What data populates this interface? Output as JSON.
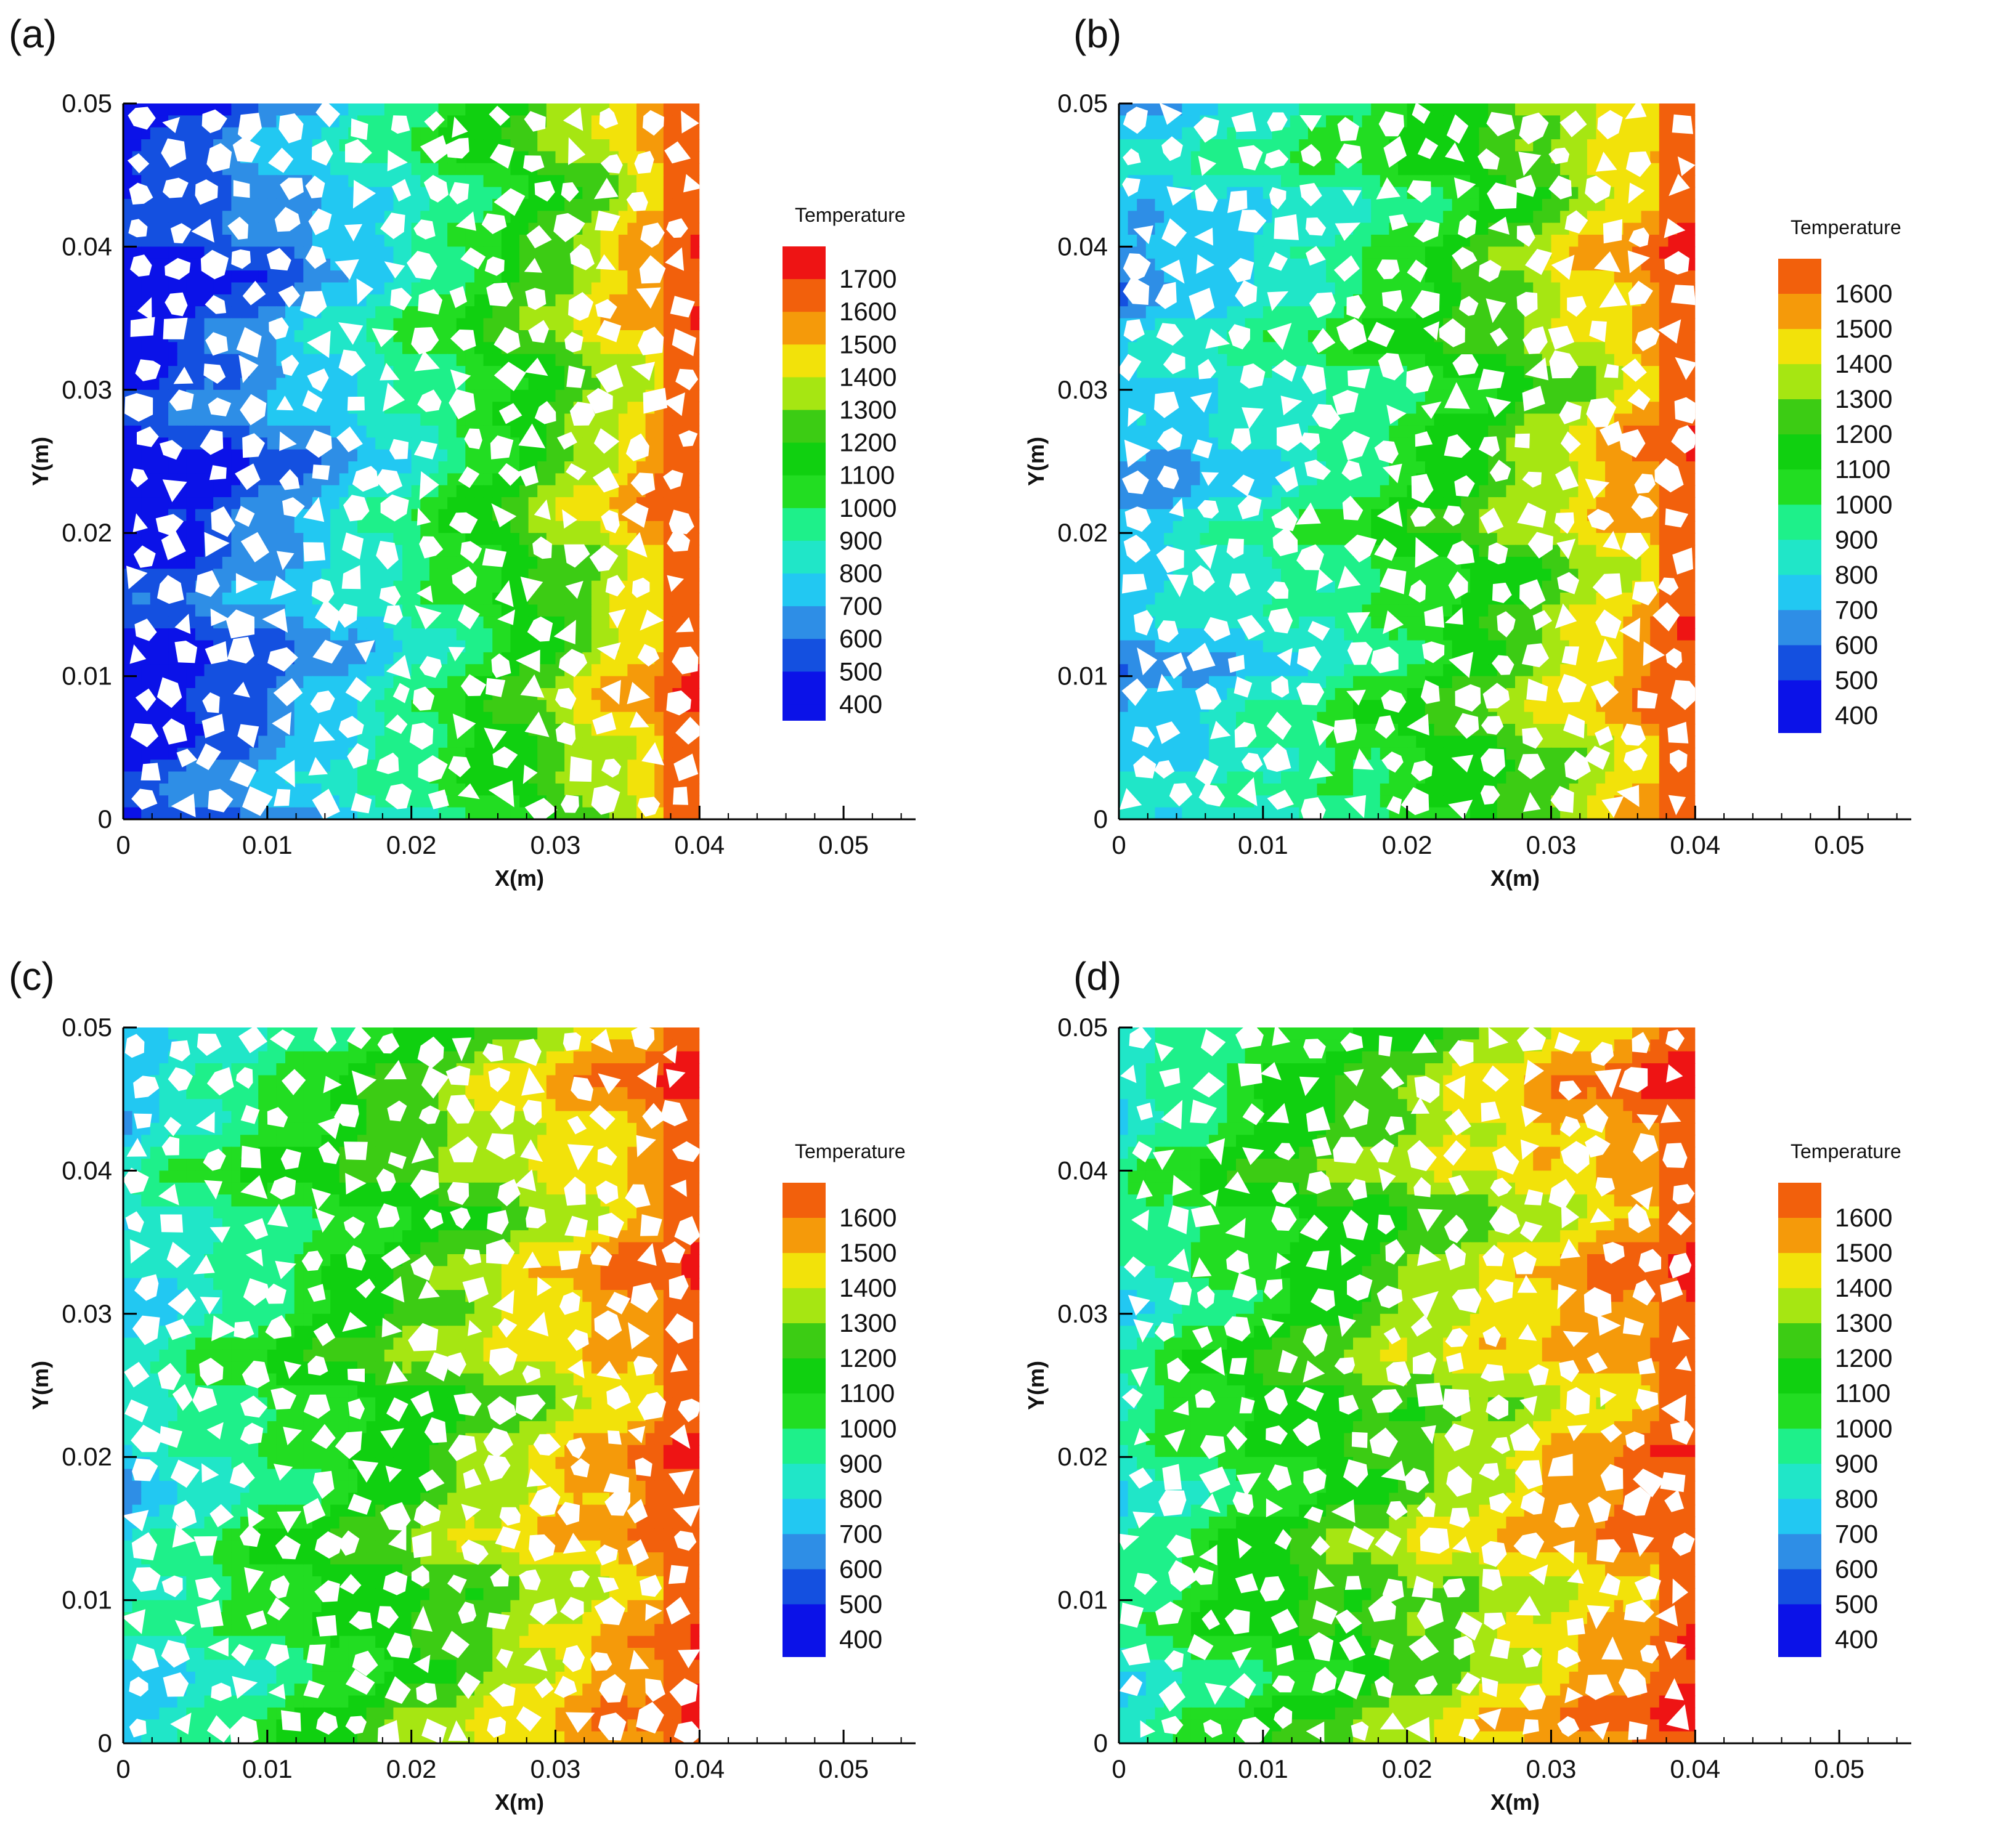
{
  "figure": {
    "panels": [
      {
        "label": "(a)",
        "legend_title": "Temperature",
        "field": {
          "left": 450,
          "right": 1650,
          "drop": 0.0,
          "curve": 1.35
        }
      },
      {
        "label": "(b)",
        "legend_title": "Temperature",
        "field": {
          "left": 720,
          "right": 1650,
          "drop": 150,
          "curve": 1.1
        }
      },
      {
        "label": "(c)",
        "legend_title": "Temperature",
        "field": {
          "left": 780,
          "right": 1650,
          "drop": 80,
          "curve": 0.85
        }
      },
      {
        "label": "(d)",
        "legend_title": "Temperature",
        "field": {
          "left": 850,
          "right": 1650,
          "drop": 60,
          "curve": 0.75
        }
      }
    ]
  },
  "colors": {
    "palette": [
      "#0b12e8",
      "#1450e0",
      "#2e8ee6",
      "#22c8f2",
      "#20e6c8",
      "#1ef08a",
      "#22dd22",
      "#10d010",
      "#3ccc14",
      "#a6e612",
      "#f2e20a",
      "#f59a0a",
      "#f2600c",
      "#ee1414"
    ]
  },
  "chart_data": [
    {
      "type": "heatmap",
      "title": "Temperature",
      "xlabel": "X(m)",
      "ylabel": "Y(m)",
      "xlim": [
        0,
        0.055
      ],
      "ylim": [
        0,
        0.05
      ],
      "domain_x": [
        0,
        0.04
      ],
      "xticks": [
        "0",
        "0.01",
        "0.02",
        "0.03",
        "0.04",
        "0.05"
      ],
      "yticks": [
        "0",
        "0.01",
        "0.02",
        "0.03",
        "0.04",
        "0.05"
      ],
      "legend_levels": [
        1700,
        1600,
        1500,
        1400,
        1300,
        1200,
        1100,
        1000,
        900,
        800,
        700,
        600,
        500,
        400
      ],
      "legend_range": [
        400,
        1750
      ]
    },
    {
      "type": "heatmap",
      "title": "Temperature",
      "xlabel": "X(m)",
      "ylabel": "Y(m)",
      "xlim": [
        0,
        0.055
      ],
      "ylim": [
        0,
        0.05
      ],
      "domain_x": [
        0,
        0.04
      ],
      "xticks": [
        "0",
        "0.01",
        "0.02",
        "0.03",
        "0.04",
        "0.05"
      ],
      "yticks": [
        "0",
        "0.01",
        "0.02",
        "0.03",
        "0.04",
        "0.05"
      ],
      "legend_levels": [
        1600,
        1500,
        1400,
        1300,
        1200,
        1100,
        1000,
        900,
        800,
        700,
        600,
        500,
        400
      ],
      "legend_range": [
        400,
        1650
      ]
    },
    {
      "type": "heatmap",
      "title": "Temperature",
      "xlabel": "X(m)",
      "ylabel": "Y(m)",
      "xlim": [
        0,
        0.055
      ],
      "ylim": [
        0,
        0.05
      ],
      "domain_x": [
        0,
        0.04
      ],
      "xticks": [
        "0",
        "0.01",
        "0.02",
        "0.03",
        "0.04",
        "0.05"
      ],
      "yticks": [
        "0",
        "0.01",
        "0.02",
        "0.03",
        "0.04",
        "0.05"
      ],
      "legend_levels": [
        1600,
        1500,
        1400,
        1300,
        1200,
        1100,
        1000,
        900,
        800,
        700,
        600,
        500,
        400
      ],
      "legend_range": [
        400,
        1650
      ]
    },
    {
      "type": "heatmap",
      "title": "Temperature",
      "xlabel": "X(m)",
      "ylabel": "Y(m)",
      "xlim": [
        0,
        0.055
      ],
      "ylim": [
        0,
        0.05
      ],
      "domain_x": [
        0,
        0.04
      ],
      "xticks": [
        "0",
        "0.01",
        "0.02",
        "0.03",
        "0.04",
        "0.05"
      ],
      "yticks": [
        "0",
        "0.01",
        "0.02",
        "0.03",
        "0.04",
        "0.05"
      ],
      "legend_levels": [
        1600,
        1500,
        1400,
        1300,
        1200,
        1100,
        1000,
        900,
        800,
        700,
        600,
        500,
        400
      ],
      "legend_range": [
        400,
        1650
      ]
    }
  ]
}
